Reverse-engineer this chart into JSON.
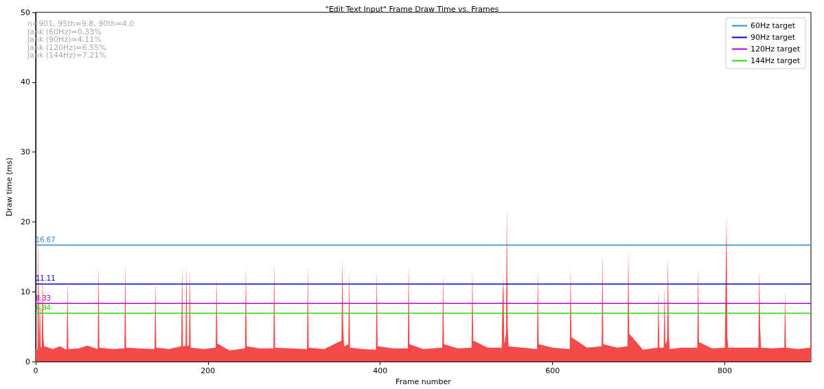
{
  "chart_data": {
    "type": "area",
    "title": "\"Edit Text Input\" Frame Draw Time vs. Frames",
    "xlabel": "Frame number",
    "ylabel": "Draw time (ms)",
    "annotations": [
      "n=901, 95th=9.8, 90th=4.0",
      "Jank (60Hz)=0.33%",
      "Jank (90Hz)=4.11%",
      "Jank (120Hz)=6.55%",
      "Jank (144Hz)=7.21%"
    ],
    "xlim": [
      0,
      900
    ],
    "xticks": [
      0,
      200,
      400,
      600,
      800
    ],
    "ylim": [
      0,
      50
    ],
    "yticks": [
      0,
      10,
      20,
      30,
      40,
      50
    ],
    "grid": false,
    "legend": "top right",
    "series": [
      {
        "color": "#f44a4a",
        "x": [
          0,
          2,
          3,
          4,
          5,
          6,
          7,
          8,
          9,
          10,
          20,
          28,
          36,
          37,
          38,
          50,
          60,
          72,
          73,
          74,
          90,
          103,
          104,
          105,
          120,
          138,
          139,
          140,
          155,
          169,
          170,
          171,
          174,
          175,
          176,
          178,
          179,
          180,
          195,
          209,
          210,
          211,
          225,
          243,
          244,
          245,
          260,
          276,
          277,
          278,
          295,
          315,
          316,
          317,
          335,
          355,
          356,
          357,
          358,
          363,
          364,
          365,
          380,
          395,
          396,
          397,
          415,
          432,
          433,
          434,
          450,
          472,
          473,
          474,
          490,
          506,
          507,
          508,
          525,
          541,
          542,
          543,
          544,
          546,
          547,
          548,
          549,
          565,
          582,
          583,
          584,
          600,
          620,
          621,
          622,
          640,
          657,
          658,
          659,
          675,
          687,
          688,
          689,
          705,
          722,
          723,
          724,
          729,
          730,
          731,
          733,
          734,
          735,
          736,
          750,
          768,
          769,
          770,
          785,
          800,
          801,
          802,
          803,
          804,
          820,
          839,
          840,
          841,
          842,
          855,
          869,
          870,
          871,
          885,
          899,
          900
        ],
        "values": [
          1.8,
          1.7,
          18.5,
          2.0,
          9.5,
          2.1,
          2.0,
          12.8,
          3.5,
          2.2,
          1.8,
          2.2,
          1.7,
          11.6,
          1.8,
          1.9,
          2.3,
          1.8,
          13.7,
          2.0,
          1.8,
          1.9,
          14.2,
          2.0,
          1.9,
          1.8,
          11.6,
          2.0,
          1.8,
          2.2,
          13.8,
          2.2,
          2.3,
          13.8,
          2.2,
          2.4,
          13.3,
          2.0,
          1.8,
          2.0,
          12.1,
          2.6,
          1.6,
          1.9,
          13.7,
          2.2,
          1.9,
          1.9,
          14.2,
          2.0,
          1.9,
          1.8,
          13.7,
          2.0,
          1.8,
          3.0,
          14.6,
          5.0,
          2.2,
          2.5,
          13.0,
          2.0,
          1.8,
          1.7,
          13.1,
          2.2,
          1.9,
          1.9,
          13.7,
          2.5,
          1.8,
          2.0,
          12.4,
          2.5,
          1.9,
          2.0,
          13.2,
          3.0,
          2.0,
          2.0,
          9.5,
          12.1,
          2.5,
          4.0,
          22.1,
          5.0,
          2.2,
          2.0,
          1.8,
          13.3,
          2.5,
          2.0,
          1.8,
          13.7,
          3.5,
          2.0,
          2.2,
          15.5,
          2.5,
          2.0,
          2.2,
          16.1,
          4.0,
          1.7,
          2.0,
          10.5,
          2.0,
          2.0,
          10.6,
          2.5,
          3.0,
          15.0,
          4.0,
          1.8,
          2.0,
          2.0,
          13.5,
          2.8,
          1.9,
          2.0,
          12.2,
          21.1,
          3.5,
          2.0,
          2.0,
          2.0,
          13.2,
          5.0,
          2.0,
          1.9,
          2.0,
          10.0,
          2.0,
          1.8,
          2.0,
          9.0
        ]
      },
      {
        "type": "line",
        "name": "60Hz target",
        "color": "#2a8fd6",
        "x": [
          0,
          900
        ],
        "values": [
          16.67,
          16.67
        ],
        "value_labels": [
          "16.67",
          null
        ]
      },
      {
        "type": "line",
        "name": "90Hz target",
        "color": "#0000dd",
        "x": [
          0,
          900
        ],
        "values": [
          11.11,
          11.11
        ],
        "value_labels": [
          "11.11",
          null
        ]
      },
      {
        "type": "line",
        "name": "120Hz target",
        "color": "#b000e0",
        "x": [
          0,
          900
        ],
        "values": [
          8.33,
          8.33
        ],
        "value_labels": [
          "8.33",
          null
        ]
      },
      {
        "type": "line",
        "name": "144Hz target",
        "color": "#22dd00",
        "x": [
          0,
          900
        ],
        "values": [
          6.94,
          6.94
        ],
        "value_labels": [
          "6.94",
          null
        ]
      }
    ]
  }
}
